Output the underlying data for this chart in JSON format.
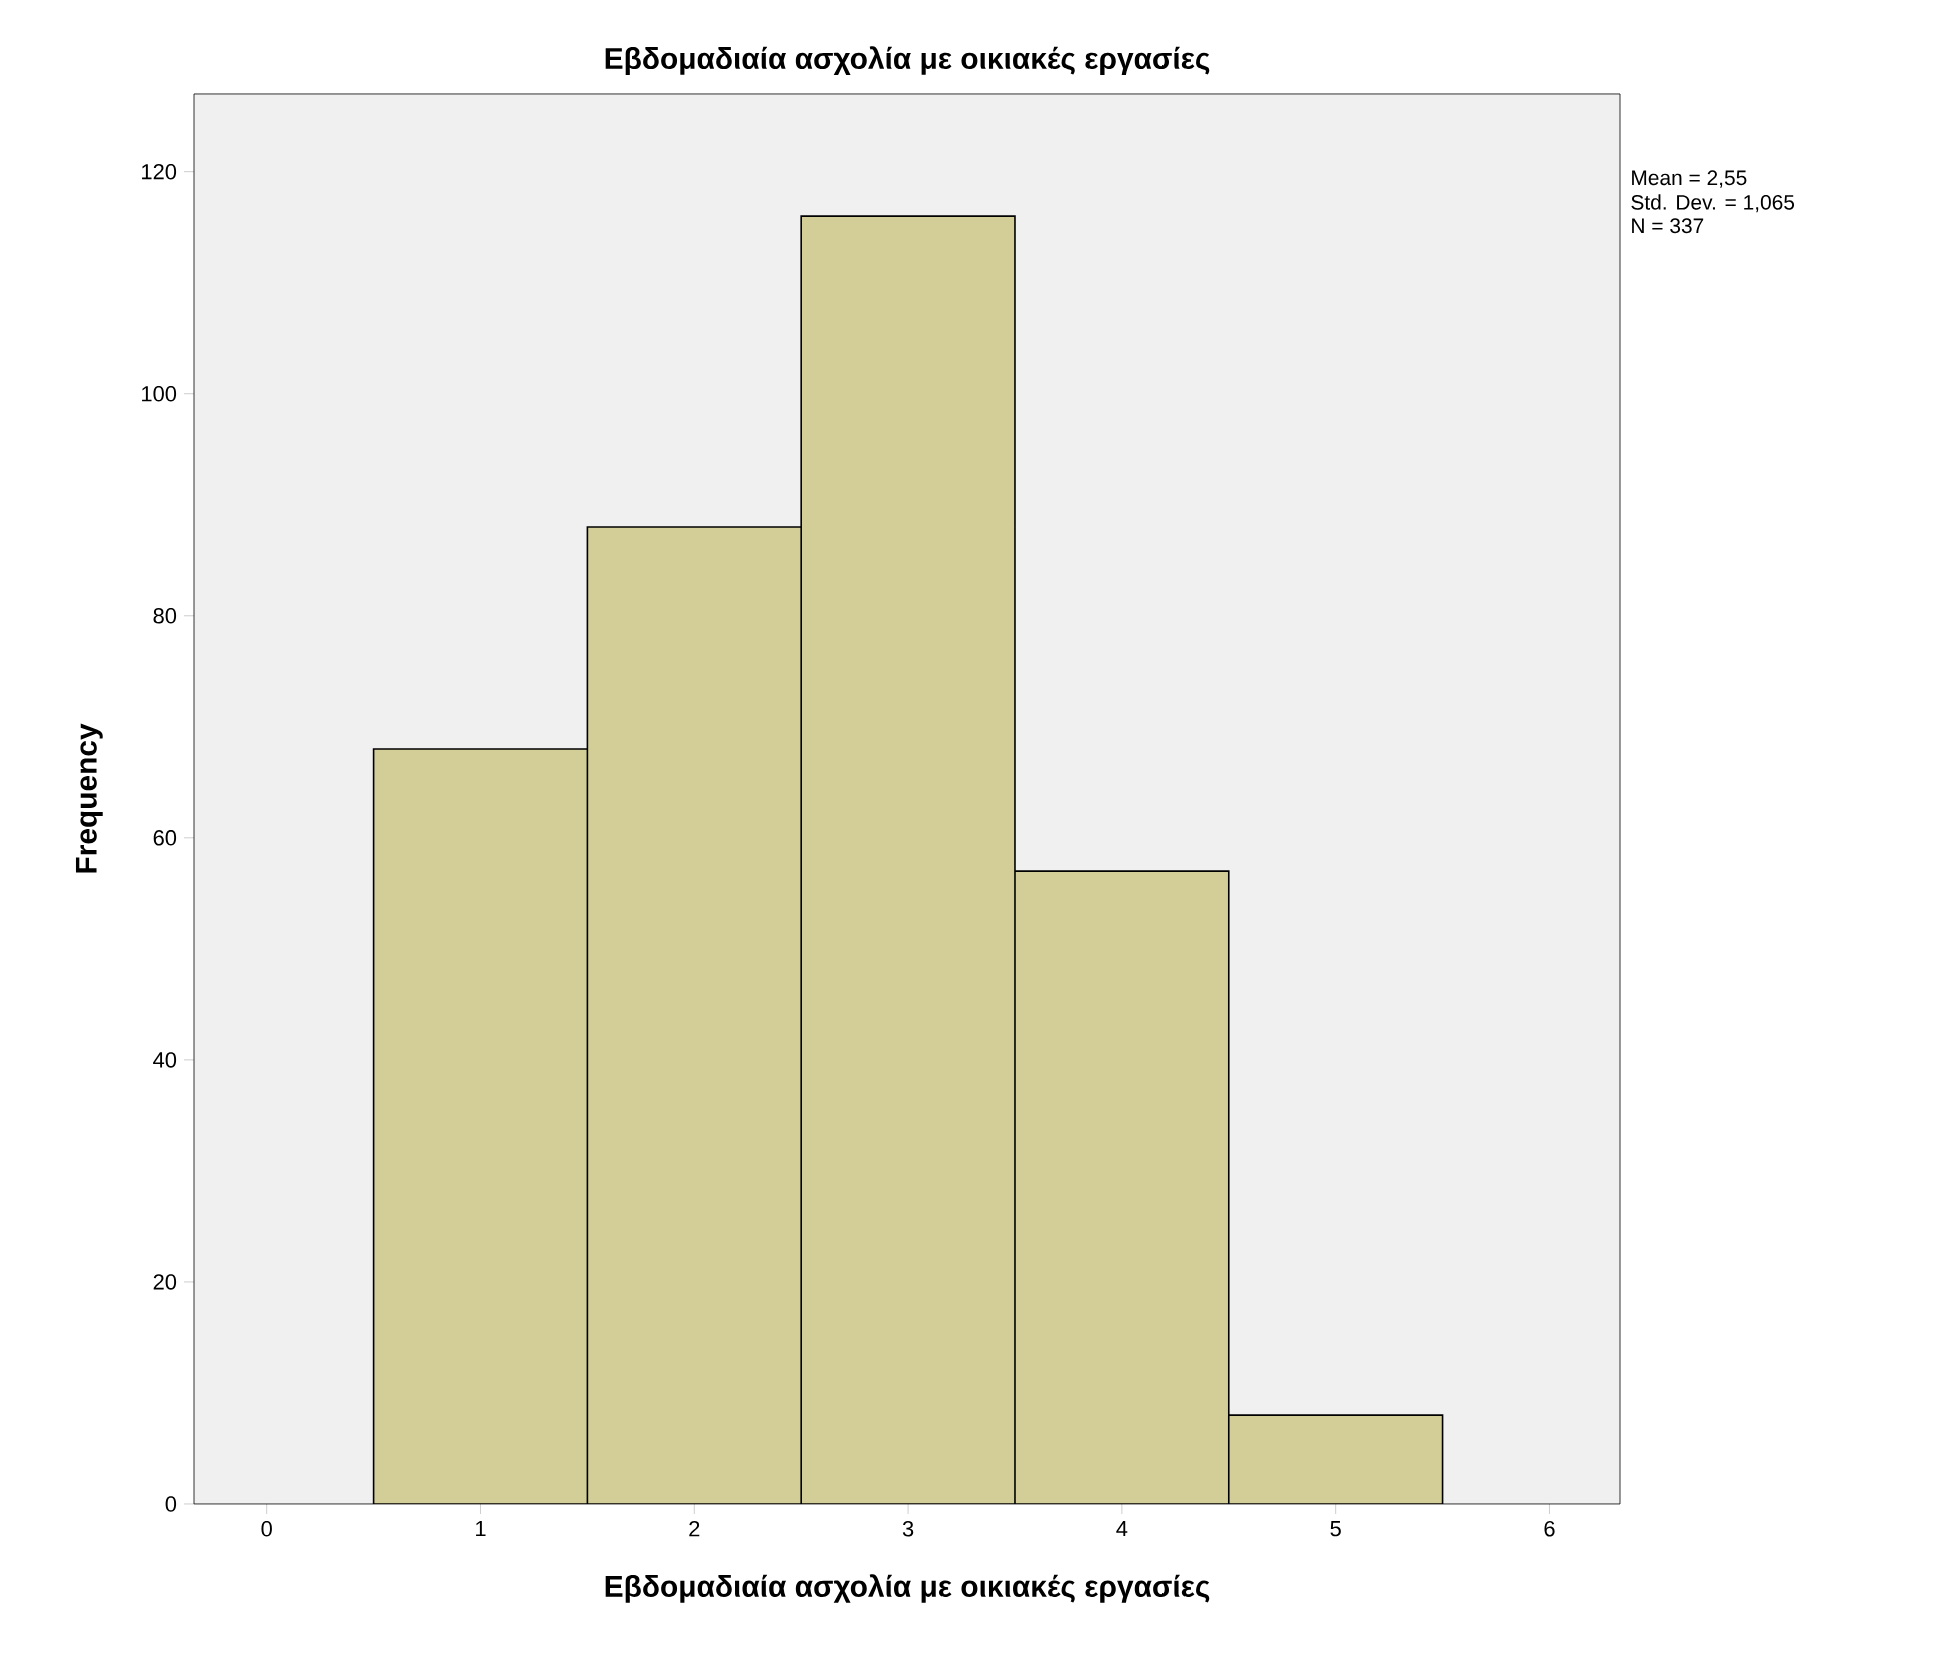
{
  "chart_data": {
    "type": "histogram",
    "title": "Εβδομαδιαία ασχολία με οικιακές εργασίες",
    "xlabel": "Εβδομαδιαία ασχολία με οικιακές εργασίες",
    "ylabel": "Frequency",
    "bins": [
      0.5,
      1.5,
      2.5,
      3.5,
      4.5,
      5.5
    ],
    "values": [
      68,
      88,
      116,
      57,
      8
    ],
    "color": "#d3ce97",
    "xlim": [
      -0.34,
      6.33
    ],
    "ylim": [
      0,
      127
    ],
    "xticks": [
      0,
      1,
      2,
      3,
      4,
      5,
      6
    ],
    "yticks": [
      0,
      20,
      40,
      60,
      80,
      100,
      120
    ],
    "annotations": [
      "Mean = 2,55",
      "Std. Dev. = 1,065",
      "N = 337"
    ]
  }
}
